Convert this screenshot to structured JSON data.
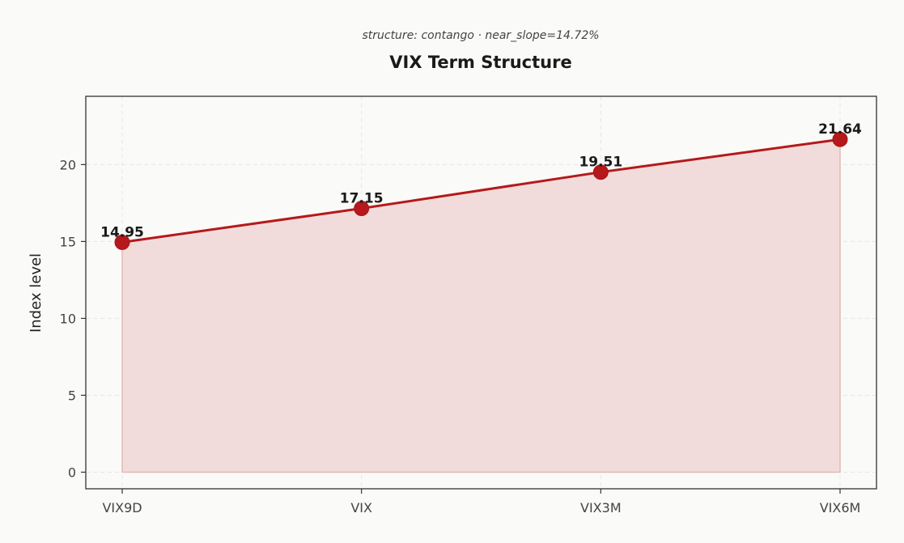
{
  "chart_data": {
    "type": "line",
    "title": "VIX Term Structure",
    "subtitle": "structure: contango · near_slope=14.72%",
    "xlabel": "",
    "ylabel": "Index level",
    "categories": [
      "VIX9D",
      "VIX",
      "VIX3M",
      "VIX6M"
    ],
    "series": [
      {
        "values": [
          14.95,
          17.15,
          19.51,
          21.64
        ],
        "value_labels": [
          "14.95",
          "17.15",
          "19.51",
          "21.64"
        ],
        "color": "#b5191b",
        "fill_color": "#f2dcdb"
      }
    ],
    "y_ticks": [
      0,
      5,
      10,
      15,
      20
    ],
    "y_tick_labels": [
      "0",
      "5",
      "10",
      "15",
      "20"
    ],
    "ylim": [
      -1.08,
      24.44
    ],
    "grid": true,
    "legend": "none",
    "area_fill": true
  }
}
